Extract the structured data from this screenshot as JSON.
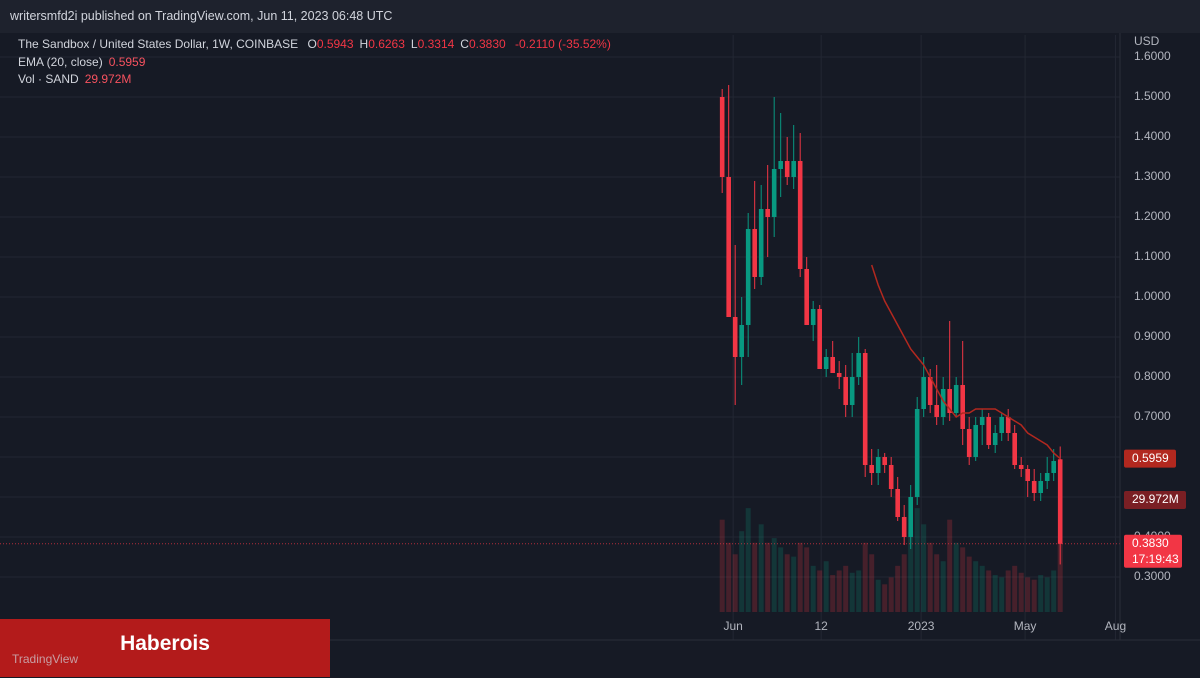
{
  "header": {
    "text": "writersmfd2i published on TradingView.com, Jun 11, 2023 06:48 UTC"
  },
  "chart_data": {
    "type": "candlestick",
    "title": "The Sandbox / United States Dollar, 1W, COINBASE",
    "legend_ohlc": [
      {
        "label": "O",
        "value": "0.5943"
      },
      {
        "label": "H",
        "value": "0.6263"
      },
      {
        "label": "L",
        "value": "0.3314"
      },
      {
        "label": "C",
        "value": "0.3830"
      }
    ],
    "change": "-0.2110 (-35.52%)",
    "currency": "USD",
    "countdown": "17:19:43",
    "categories": [
      null,
      null,
      null,
      null,
      null,
      null,
      null,
      null,
      null,
      null,
      null,
      null,
      null,
      null,
      null,
      null,
      null,
      null,
      null,
      null,
      null,
      null,
      null,
      null,
      null,
      null,
      null,
      null,
      null,
      null,
      null,
      null,
      null,
      null,
      null,
      null,
      null,
      null,
      null,
      null,
      null,
      null,
      null,
      null,
      null,
      null,
      null,
      null,
      null,
      null,
      null,
      null,
      null
    ],
    "open": [
      1.5,
      1.3,
      0.95,
      0.85,
      0.93,
      1.17,
      1.05,
      1.22,
      1.2,
      1.32,
      1.34,
      1.3,
      1.34,
      1.07,
      0.93,
      0.97,
      0.82,
      0.85,
      0.81,
      0.8,
      0.73,
      0.8,
      0.86,
      0.58,
      0.56,
      0.6,
      0.58,
      0.52,
      0.45,
      0.4,
      0.5,
      0.72,
      0.8,
      0.73,
      0.7,
      0.77,
      0.71,
      0.78,
      0.67,
      0.6,
      0.68,
      0.7,
      0.63,
      0.66,
      0.7,
      0.66,
      0.58,
      0.57,
      0.54,
      0.51,
      0.54,
      0.56,
      0.5943
    ],
    "high": [
      1.52,
      1.53,
      1.13,
      1.0,
      1.21,
      1.29,
      1.28,
      1.33,
      1.5,
      1.46,
      1.4,
      1.43,
      1.41,
      1.1,
      0.99,
      0.98,
      0.87,
      0.89,
      0.84,
      0.83,
      0.86,
      0.9,
      0.87,
      0.62,
      0.62,
      0.61,
      0.6,
      0.55,
      0.48,
      0.53,
      0.75,
      0.85,
      0.82,
      0.83,
      0.8,
      0.94,
      0.8,
      0.89,
      0.7,
      0.7,
      0.72,
      0.71,
      0.68,
      0.71,
      0.72,
      0.68,
      0.6,
      0.58,
      0.57,
      0.56,
      0.6,
      0.62,
      0.6263
    ],
    "low": [
      1.26,
      0.95,
      0.73,
      0.78,
      0.85,
      1.02,
      1.03,
      1.1,
      1.15,
      1.25,
      1.28,
      1.27,
      1.05,
      0.93,
      0.89,
      0.82,
      0.8,
      0.81,
      0.77,
      0.7,
      0.7,
      0.78,
      0.55,
      0.53,
      0.53,
      0.56,
      0.5,
      0.44,
      0.38,
      0.37,
      0.48,
      0.7,
      0.71,
      0.68,
      0.68,
      0.69,
      0.7,
      0.63,
      0.58,
      0.59,
      0.63,
      0.62,
      0.61,
      0.64,
      0.64,
      0.57,
      0.55,
      0.5,
      0.49,
      0.49,
      0.52,
      0.54,
      0.3314
    ],
    "close": [
      1.3,
      0.95,
      0.85,
      0.93,
      1.17,
      1.05,
      1.22,
      1.2,
      1.32,
      1.34,
      1.3,
      1.34,
      1.07,
      0.93,
      0.97,
      0.82,
      0.85,
      0.81,
      0.8,
      0.73,
      0.8,
      0.86,
      0.58,
      0.56,
      0.6,
      0.58,
      0.52,
      0.45,
      0.4,
      0.5,
      0.72,
      0.8,
      0.73,
      0.7,
      0.77,
      0.71,
      0.78,
      0.67,
      0.6,
      0.68,
      0.7,
      0.63,
      0.66,
      0.7,
      0.66,
      0.58,
      0.57,
      0.54,
      0.51,
      0.54,
      0.56,
      0.59,
      0.383
    ],
    "up_color": "#089981",
    "down_color": "#f23645",
    "series": [
      {
        "name": "EMA (20, close)",
        "value_label": "0.5959",
        "color": "#b2281f",
        "values": [
          null,
          null,
          null,
          null,
          null,
          null,
          null,
          null,
          null,
          null,
          null,
          null,
          null,
          null,
          null,
          null,
          null,
          null,
          null,
          null,
          null,
          null,
          null,
          1.08,
          1.03,
          0.99,
          0.96,
          0.93,
          0.9,
          0.87,
          0.85,
          0.83,
          0.8,
          0.77,
          0.74,
          0.72,
          0.7,
          0.71,
          0.71,
          0.72,
          0.72,
          0.72,
          0.72,
          0.71,
          0.7,
          0.69,
          0.68,
          0.66,
          0.65,
          0.64,
          0.63,
          0.61,
          0.5959
        ]
      }
    ],
    "volume": {
      "name": "Vol · SAND",
      "value_label": "29.972M",
      "values": [
        40000000,
        30000000,
        25000000,
        35000000,
        45000000,
        30000000,
        38000000,
        30000000,
        32000000,
        28000000,
        25000000,
        24000000,
        30000000,
        28000000,
        20000000,
        18000000,
        22000000,
        16000000,
        18000000,
        20000000,
        17000000,
        18000000,
        30000000,
        25000000,
        14000000,
        12000000,
        15000000,
        20000000,
        25000000,
        35000000,
        45000000,
        38000000,
        30000000,
        25000000,
        22000000,
        40000000,
        30000000,
        28000000,
        24000000,
        22000000,
        20000000,
        18000000,
        16000000,
        15000000,
        18000000,
        20000000,
        17000000,
        15000000,
        14000000,
        16000000,
        15000000,
        18000000,
        29972000
      ]
    },
    "y2lim": [
      0,
      250000000
    ],
    "ylim": [
      0.1425,
      1.655
    ],
    "yticks": [
      {
        "value": 0.3,
        "label": "0.3000"
      },
      {
        "value": 0.4,
        "label": "0.4000"
      },
      {
        "value": 0.5,
        "label": "0.5000"
      },
      {
        "value": 0.6,
        "label": "0.6000"
      },
      {
        "value": 0.7,
        "label": "0.7000"
      },
      {
        "value": 0.8,
        "label": "0.8000"
      },
      {
        "value": 0.9,
        "label": "0.9000"
      },
      {
        "value": 1,
        "label": "1.0000"
      },
      {
        "value": 1.1,
        "label": "1.1000"
      },
      {
        "value": 1.2,
        "label": "1.2000"
      },
      {
        "value": 1.3,
        "label": "1.3000"
      },
      {
        "value": 1.4,
        "label": "1.4000"
      },
      {
        "value": 1.5,
        "label": "1.5000"
      },
      {
        "value": 1.6,
        "label": "1.6000"
      }
    ],
    "xlim": [
      -111.1,
      61.2
    ],
    "xticks": [
      {
        "value": 1.69,
        "label": "Jun"
      },
      {
        "value": 15.23,
        "label": "12"
      },
      {
        "value": 30.6,
        "label": "2023"
      },
      {
        "value": 46.6,
        "label": "May"
      },
      {
        "value": 60.5,
        "label": "Aug"
      }
    ],
    "grid": true
  },
  "watermark": {
    "brand": "Haberois",
    "logo": "TradingView"
  }
}
